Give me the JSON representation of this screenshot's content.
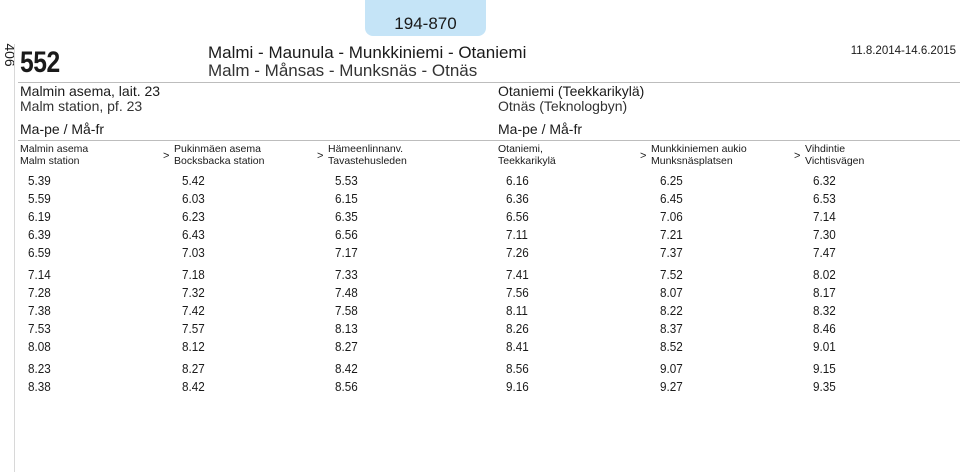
{
  "header": {
    "tab_label": "194-870",
    "page_number": "406",
    "route_number": "552",
    "title_fi": "Malmi - Maunula - Munkkiniemi - Otaniemi",
    "title_sv": "Malm - Månsas - Munksnäs - Otnäs",
    "validity": "11.8.2014-14.6.2015"
  },
  "directions": [
    {
      "from_fi": "Malmin asema, lait. 23",
      "from_sv": "Malm station, pf. 23",
      "days": "Ma-pe / Må-fr",
      "stops": [
        {
          "fi": "Malmin asema",
          "sv": "Malm station"
        },
        {
          "fi": "Pukinmäen asema",
          "sv": "Bocksbacka station"
        },
        {
          "fi": "Hämeenlinnanv.",
          "sv": "Tavastehusleden"
        }
      ],
      "times": [
        [
          "5.39",
          "5.59",
          "6.19",
          "6.39",
          "6.59",
          "7.14",
          "7.28",
          "7.38",
          "7.53",
          "8.08",
          "8.23",
          "8.38"
        ],
        [
          "5.42",
          "6.03",
          "6.23",
          "6.43",
          "7.03",
          "7.18",
          "7.32",
          "7.42",
          "7.57",
          "8.12",
          "8.27",
          "8.42"
        ],
        [
          "5.53",
          "6.15",
          "6.35",
          "6.56",
          "7.17",
          "7.33",
          "7.48",
          "7.58",
          "8.13",
          "8.27",
          "8.42",
          "8.56"
        ]
      ]
    },
    {
      "from_fi": "Otaniemi (Teekkarikylä)",
      "from_sv": "Otnäs (Teknologbyn)",
      "days": "Ma-pe / Må-fr",
      "stops": [
        {
          "fi": "Otaniemi,",
          "sv": "Teekkarikylä"
        },
        {
          "fi": "Munkkiniemen aukio",
          "sv": "Munksnäsplatsen"
        },
        {
          "fi": "Vihdintie",
          "sv": "Vichtisvägen"
        }
      ],
      "times": [
        [
          "6.16",
          "6.36",
          "6.56",
          "7.11",
          "7.26",
          "7.41",
          "7.56",
          "8.11",
          "8.26",
          "8.41",
          "8.56",
          "9.16"
        ],
        [
          "6.25",
          "6.45",
          "7.06",
          "7.21",
          "7.37",
          "7.52",
          "8.07",
          "8.22",
          "8.37",
          "8.52",
          "9.07",
          "9.27"
        ],
        [
          "6.32",
          "6.53",
          "7.14",
          "7.30",
          "7.47",
          "8.02",
          "8.17",
          "8.32",
          "8.46",
          "9.01",
          "9.15",
          "9.35"
        ]
      ]
    }
  ],
  "arrow_glyph": ">"
}
